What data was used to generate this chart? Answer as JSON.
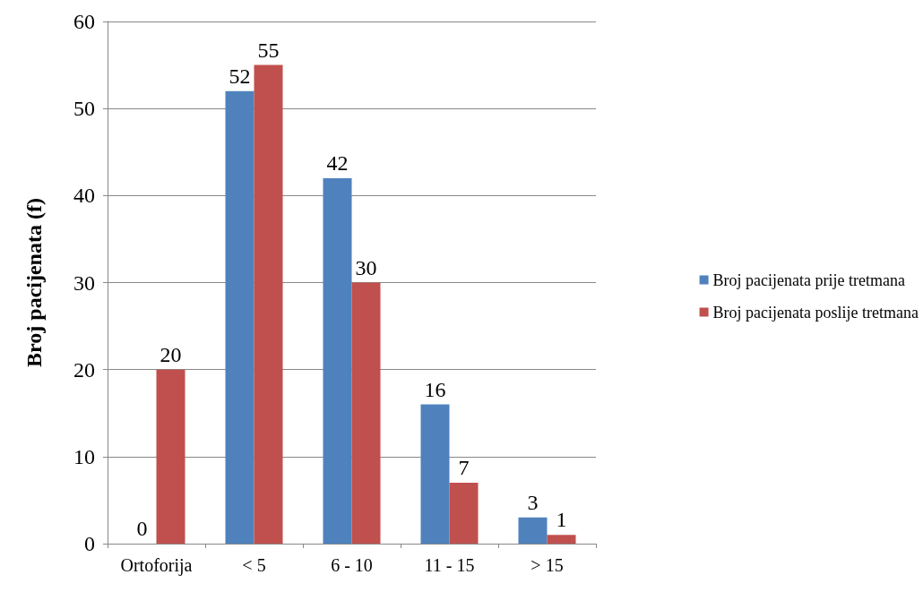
{
  "chart_data": {
    "type": "bar",
    "ylabel": "Broj pacijenata (f)",
    "categories": [
      "Ortoforija",
      "< 5",
      "6 - 10",
      "11 - 15",
      "> 15"
    ],
    "series": [
      {
        "name": "Broj pacijenata prije tretmana",
        "color": "#4f81bd",
        "values": [
          0,
          52,
          42,
          16,
          3
        ]
      },
      {
        "name": "Broj pacijenata poslije tretmana",
        "color": "#c0504d",
        "values": [
          20,
          55,
          30,
          7,
          1
        ]
      }
    ],
    "ylim": [
      0,
      60
    ],
    "yticks": [
      0,
      10,
      20,
      30,
      40,
      50,
      60
    ],
    "grid": "y",
    "legend": "right",
    "data_labels": true
  }
}
